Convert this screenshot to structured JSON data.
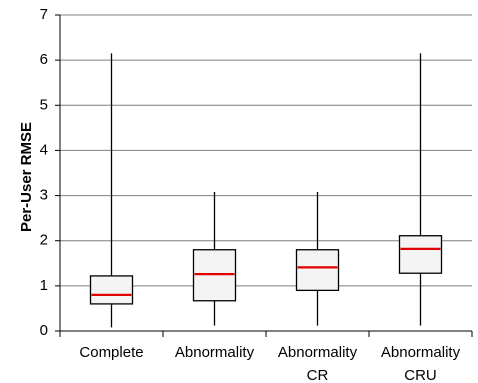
{
  "chart_data": {
    "type": "box",
    "title": "",
    "xlabel": "",
    "ylabel": "Per-User RMSE",
    "ylim": [
      0,
      7
    ],
    "yticks": [
      0,
      1,
      2,
      3,
      4,
      5,
      6,
      7
    ],
    "grid": true,
    "categories": [
      {
        "lines": [
          "Complete"
        ]
      },
      {
        "lines": [
          "Abnormality"
        ]
      },
      {
        "lines": [
          "Abnormality",
          "CR"
        ]
      },
      {
        "lines": [
          "Abnormality",
          "CRU"
        ]
      }
    ],
    "boxes": [
      {
        "min": 0.08,
        "q1": 0.6,
        "median": 0.8,
        "q3": 1.22,
        "max": 6.15
      },
      {
        "min": 0.12,
        "q1": 0.67,
        "median": 1.26,
        "q3": 1.8,
        "max": 3.08
      },
      {
        "min": 0.12,
        "q1": 0.9,
        "median": 1.41,
        "q3": 1.8,
        "max": 3.08
      },
      {
        "min": 0.12,
        "q1": 1.28,
        "median": 1.82,
        "q3": 2.11,
        "max": 6.15
      }
    ],
    "colors": {
      "median": "#e00000",
      "box_fill": "#f4f4f4",
      "stroke": "#000000",
      "grid": "#7f7f7f"
    }
  }
}
